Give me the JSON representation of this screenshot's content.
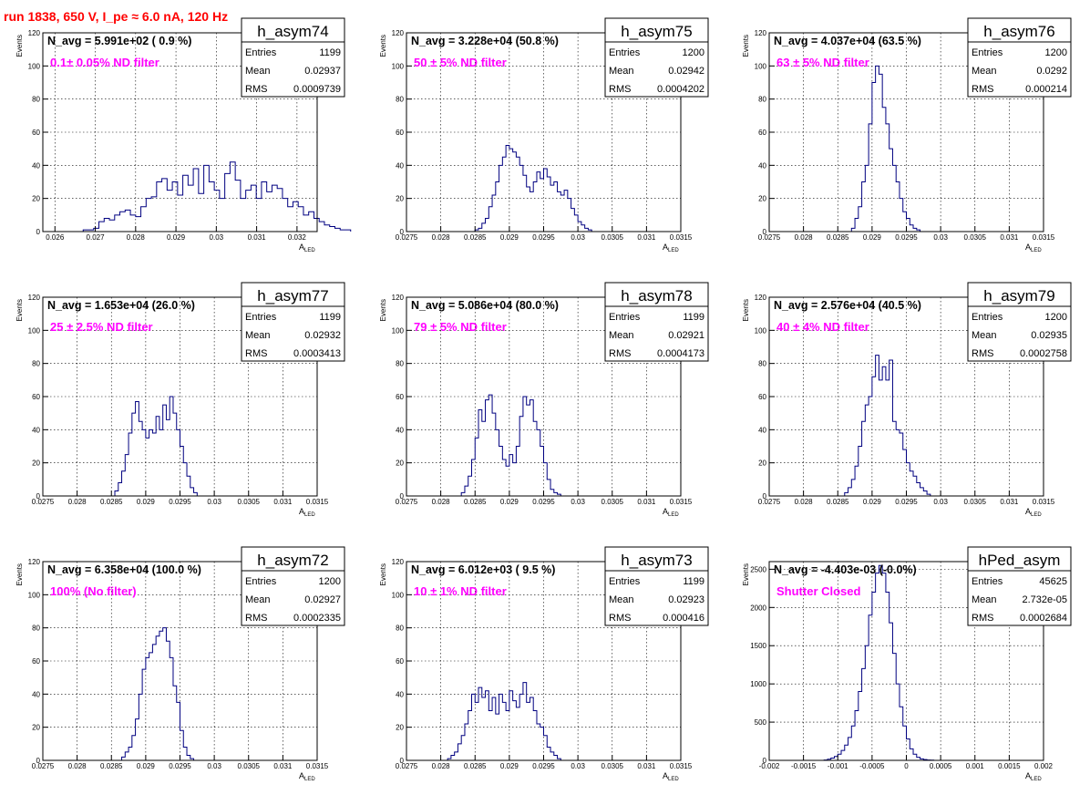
{
  "page": {
    "title": "run 1838,   650 V, I_pe ≈ 6.0 nA, 120 Hz"
  },
  "colors": {
    "histogram": "#000080",
    "annotation": "#ff00ff",
    "title": "#ff0000"
  },
  "common": {
    "ylabel": "Events",
    "xlabel": "A",
    "xlabel_sub": "LED",
    "stats_labels": [
      "Entries",
      "Mean",
      "RMS"
    ]
  },
  "chart_data": [
    {
      "type": "bar",
      "name": "h_asym74",
      "navg": "N_avg = 5.991e+02 ( 0.9 %)",
      "filter": "0.1± 0.05% ND filter",
      "stats": {
        "entries": "1199",
        "mean": "0.02937",
        "rms": "0.0009739"
      },
      "xlim": [
        0.0257,
        0.0325
      ],
      "ylim": [
        0,
        120
      ],
      "xticks": [
        0.026,
        0.027,
        0.028,
        0.029,
        0.03,
        0.031,
        0.032
      ],
      "xticklabels": [
        "0.026",
        "0.027",
        "0.028",
        "0.029",
        "0.03",
        "0.031",
        "0.032"
      ],
      "yticks": [
        0,
        20,
        40,
        60,
        80,
        100,
        120
      ],
      "yticklabels": [
        "0",
        "20",
        "40",
        "60",
        "80",
        "100",
        "120"
      ],
      "bin_start": 0.0267,
      "bin_width": 0.00013,
      "values": [
        1,
        1,
        2,
        6,
        8,
        7,
        10,
        12,
        13,
        10,
        9,
        15,
        20,
        21,
        30,
        32,
        25,
        30,
        22,
        34,
        28,
        38,
        23,
        40,
        30,
        25,
        20,
        35,
        42,
        31,
        20,
        25,
        28,
        20,
        30,
        24,
        28,
        26,
        20,
        15,
        18,
        15,
        10,
        12,
        8,
        6,
        4,
        3,
        2,
        1,
        1
      ]
    },
    {
      "type": "bar",
      "name": "h_asym75",
      "navg": "N_avg = 3.228e+04 (50.8 %)",
      "filter": "50 ± 5% ND filter",
      "stats": {
        "entries": "1200",
        "mean": "0.02942",
        "rms": "0.0004202"
      },
      "xlim": [
        0.0275,
        0.0315
      ],
      "ylim": [
        0,
        120
      ],
      "xticks": [
        0.0275,
        0.028,
        0.0285,
        0.029,
        0.0295,
        0.03,
        0.0305,
        0.031,
        0.0315
      ],
      "xticklabels": [
        "0.0275",
        "0.028",
        "0.0285",
        "0.029",
        "0.0295",
        "0.03",
        "0.0305",
        "0.031",
        "0.0315"
      ],
      "yticks": [
        0,
        20,
        40,
        60,
        80,
        100,
        120
      ],
      "yticklabels": [
        "0",
        "20",
        "40",
        "60",
        "80",
        "100",
        "120"
      ],
      "bin_start": 0.0285,
      "bin_width": 5e-05,
      "values": [
        1,
        2,
        5,
        8,
        15,
        22,
        30,
        40,
        45,
        52,
        50,
        48,
        45,
        40,
        34,
        27,
        24,
        30,
        36,
        32,
        38,
        33,
        28,
        30,
        24,
        22,
        25,
        20,
        14,
        10,
        6,
        4,
        2,
        1
      ]
    },
    {
      "type": "bar",
      "name": "h_asym76",
      "navg": "N_avg = 4.037e+04 (63.5 %)",
      "filter": "63 ± 5% ND filter",
      "stats": {
        "entries": "1200",
        "mean": "0.0292",
        "rms": "0.000214"
      },
      "xlim": [
        0.0275,
        0.0315
      ],
      "ylim": [
        0,
        120
      ],
      "xticks": [
        0.0275,
        0.028,
        0.0285,
        0.029,
        0.0295,
        0.03,
        0.0305,
        0.031,
        0.0315
      ],
      "xticklabels": [
        "0.0275",
        "0.028",
        "0.0285",
        "0.029",
        "0.0295",
        "0.03",
        "0.0305",
        "0.031",
        "0.0315"
      ],
      "yticks": [
        0,
        20,
        40,
        60,
        80,
        100,
        120
      ],
      "yticklabels": [
        "0",
        "20",
        "40",
        "60",
        "80",
        "100",
        "120"
      ],
      "bin_start": 0.0287,
      "bin_width": 5e-05,
      "values": [
        2,
        8,
        15,
        30,
        40,
        65,
        90,
        100,
        95,
        75,
        65,
        50,
        40,
        30,
        20,
        12,
        8,
        4,
        2,
        1
      ]
    },
    {
      "type": "bar",
      "name": "h_asym77",
      "navg": "N_avg = 1.653e+04 (26.0 %)",
      "filter": "25 ± 2.5% ND filter",
      "stats": {
        "entries": "1199",
        "mean": "0.02932",
        "rms": "0.0003413"
      },
      "xlim": [
        0.0275,
        0.0315
      ],
      "ylim": [
        0,
        120
      ],
      "xticks": [
        0.0275,
        0.028,
        0.0285,
        0.029,
        0.0295,
        0.03,
        0.0305,
        0.031,
        0.0315
      ],
      "xticklabels": [
        "0.0275",
        "0.028",
        "0.0285",
        "0.029",
        "0.0295",
        "0.03",
        "0.0305",
        "0.031",
        "0.0315"
      ],
      "yticks": [
        0,
        20,
        40,
        60,
        80,
        100,
        120
      ],
      "yticklabels": [
        "0",
        "20",
        "40",
        "60",
        "80",
        "100",
        "120"
      ],
      "bin_start": 0.02855,
      "bin_width": 5e-05,
      "values": [
        3,
        8,
        15,
        25,
        38,
        50,
        57,
        45,
        40,
        35,
        40,
        38,
        48,
        40,
        55,
        46,
        60,
        50,
        40,
        30,
        20,
        12,
        5,
        2
      ]
    },
    {
      "type": "bar",
      "name": "h_asym78",
      "navg": "N_avg = 5.086e+04 (80.0 %)",
      "filter": "79 ± 5% ND filter",
      "stats": {
        "entries": "1199",
        "mean": "0.02921",
        "rms": "0.0004173"
      },
      "xlim": [
        0.0275,
        0.0315
      ],
      "ylim": [
        0,
        120
      ],
      "xticks": [
        0.0275,
        0.028,
        0.0285,
        0.029,
        0.0295,
        0.03,
        0.0305,
        0.031,
        0.0315
      ],
      "xticklabels": [
        "0.0275",
        "0.028",
        "0.0285",
        "0.029",
        "0.0295",
        "0.03",
        "0.0305",
        "0.031",
        "0.0315"
      ],
      "yticks": [
        0,
        20,
        40,
        60,
        80,
        100,
        120
      ],
      "yticklabels": [
        "0",
        "20",
        "40",
        "60",
        "80",
        "100",
        "120"
      ],
      "bin_start": 0.0283,
      "bin_width": 5e-05,
      "values": [
        2,
        6,
        12,
        22,
        35,
        52,
        45,
        58,
        61,
        50,
        40,
        30,
        22,
        18,
        25,
        20,
        30,
        48,
        60,
        55,
        58,
        45,
        40,
        30,
        20,
        10,
        4,
        2,
        1
      ]
    },
    {
      "type": "bar",
      "name": "h_asym79",
      "navg": "N_avg = 2.576e+04 (40.5 %)",
      "filter": "40 ± 4% ND filter",
      "stats": {
        "entries": "1200",
        "mean": "0.02935",
        "rms": "0.0002758"
      },
      "xlim": [
        0.0275,
        0.0315
      ],
      "ylim": [
        0,
        120
      ],
      "xticks": [
        0.0275,
        0.028,
        0.0285,
        0.029,
        0.0295,
        0.03,
        0.0305,
        0.031,
        0.0315
      ],
      "xticklabels": [
        "0.0275",
        "0.028",
        "0.0285",
        "0.029",
        "0.0295",
        "0.03",
        "0.0305",
        "0.031",
        "0.0315"
      ],
      "yticks": [
        0,
        20,
        40,
        60,
        80,
        100,
        120
      ],
      "yticklabels": [
        "0",
        "20",
        "40",
        "60",
        "80",
        "100",
        "120"
      ],
      "bin_start": 0.0286,
      "bin_width": 5e-05,
      "values": [
        2,
        5,
        10,
        18,
        30,
        45,
        55,
        60,
        72,
        85,
        70,
        78,
        70,
        82,
        45,
        40,
        38,
        28,
        20,
        15,
        12,
        8,
        5,
        3,
        1
      ]
    },
    {
      "type": "bar",
      "name": "h_asym72",
      "navg": "N_avg = 6.358e+04 (100.0 %)",
      "filter": "100% (No filter)",
      "stats": {
        "entries": "1200",
        "mean": "0.02927",
        "rms": "0.0002335"
      },
      "xlim": [
        0.0275,
        0.0315
      ],
      "ylim": [
        0,
        120
      ],
      "xticks": [
        0.0275,
        0.028,
        0.0285,
        0.029,
        0.0295,
        0.03,
        0.0305,
        0.031,
        0.0315
      ],
      "xticklabels": [
        "0.0275",
        "0.028",
        "0.0285",
        "0.029",
        "0.0295",
        "0.03",
        "0.0305",
        "0.031",
        "0.0315"
      ],
      "yticks": [
        0,
        20,
        40,
        60,
        80,
        100,
        120
      ],
      "yticklabels": [
        "0",
        "20",
        "40",
        "60",
        "80",
        "100",
        "120"
      ],
      "bin_start": 0.02865,
      "bin_width": 5e-05,
      "values": [
        2,
        5,
        8,
        15,
        25,
        40,
        55,
        62,
        65,
        70,
        75,
        78,
        80,
        72,
        62,
        45,
        35,
        18,
        8,
        3,
        1
      ]
    },
    {
      "type": "bar",
      "name": "h_asym73",
      "navg": "N_avg = 6.012e+03 ( 9.5 %)",
      "filter": "10 ± 1% ND filter",
      "stats": {
        "entries": "1199",
        "mean": "0.02923",
        "rms": "0.000416"
      },
      "xlim": [
        0.0275,
        0.0315
      ],
      "ylim": [
        0,
        120
      ],
      "xticks": [
        0.0275,
        0.028,
        0.0285,
        0.029,
        0.0295,
        0.03,
        0.0305,
        0.031,
        0.0315
      ],
      "xticklabels": [
        "0.0275",
        "0.028",
        "0.0285",
        "0.029",
        "0.0295",
        "0.03",
        "0.0305",
        "0.031",
        "0.0315"
      ],
      "yticks": [
        0,
        20,
        40,
        60,
        80,
        100,
        120
      ],
      "yticklabels": [
        "0",
        "20",
        "40",
        "60",
        "80",
        "100",
        "120"
      ],
      "bin_start": 0.0281,
      "bin_width": 5e-05,
      "values": [
        1,
        3,
        5,
        10,
        15,
        22,
        30,
        40,
        35,
        44,
        38,
        42,
        30,
        38,
        28,
        40,
        35,
        30,
        42,
        36,
        32,
        40,
        47,
        35,
        38,
        30,
        22,
        20,
        15,
        8,
        5,
        3,
        1
      ]
    },
    {
      "type": "bar",
      "name": "hPed_asym",
      "navg": "N_avg = -4.403e-03 (-0.0%)",
      "filter": "Shutter Closed",
      "stats": {
        "entries": "45625",
        "mean": "2.732e-05",
        "rms": "0.0002684"
      },
      "xlim": [
        -0.002,
        0.002
      ],
      "ylim": [
        0,
        2600
      ],
      "xticks": [
        -0.002,
        -0.0015,
        -0.001,
        -0.0005,
        0,
        0.0005,
        0.001,
        0.0015,
        0.002
      ],
      "xticklabels": [
        "-0.002",
        "-0.0015",
        "-0.001",
        "-0.0005",
        "0",
        "0.0005",
        "0.001",
        "0.0015",
        "0.002"
      ],
      "yticks": [
        0,
        500,
        1000,
        1500,
        2000,
        2500
      ],
      "yticklabels": [
        "0",
        "500",
        "1000",
        "1500",
        "2000",
        "2500"
      ],
      "bin_start": -0.0012,
      "bin_width": 5e-05,
      "values": [
        5,
        15,
        30,
        50,
        80,
        130,
        200,
        300,
        450,
        650,
        900,
        1200,
        1500,
        1900,
        2200,
        2450,
        2550,
        2450,
        2200,
        1800,
        1400,
        1000,
        700,
        450,
        280,
        150,
        80,
        40,
        20,
        10,
        5,
        3
      ]
    }
  ]
}
